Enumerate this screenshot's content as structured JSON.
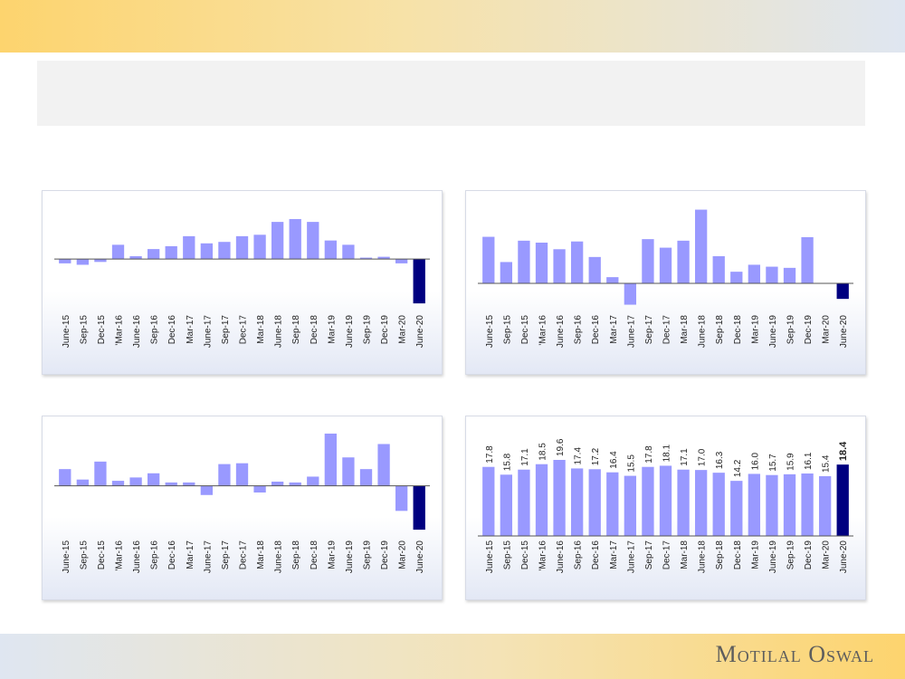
{
  "brand": {
    "name": "Motilal Oswal"
  },
  "colors": {
    "bar": "#9999ff",
    "highlight": "#000080",
    "axis": "#555555",
    "text": "#222222"
  },
  "chart_data": [
    {
      "type": "bar",
      "categories": [
        "June-15",
        "Sep-15",
        "Dec-15",
        "'Mar-16",
        "June-16",
        "Sep-16",
        "Dec-16",
        "Mar-17",
        "June-17",
        "Sep-17",
        "Dec-17",
        "Mar-18",
        "June-18",
        "Sep-18",
        "Dec-18",
        "Mar-19",
        "June-19",
        "Sep-19",
        "Dec-19",
        "Mar-20",
        "June-20"
      ],
      "values": [
        -1.5,
        -2.0,
        -1.0,
        5.0,
        1.0,
        3.5,
        4.5,
        8.0,
        5.5,
        6.0,
        8.0,
        8.5,
        13.0,
        14.0,
        13.0,
        6.5,
        5.0,
        0.5,
        0.8,
        -1.5,
        -15.5
      ],
      "highlight_index": 20,
      "ylim": [
        -18,
        20
      ],
      "title": "",
      "xlabel": "",
      "ylabel": ""
    },
    {
      "type": "bar",
      "categories": [
        "June-15",
        "Sep-15",
        "Dec-15",
        "'Mar-16",
        "June-16",
        "Sep-16",
        "Dec-16",
        "Mar-17",
        "June-17",
        "Sep-17",
        "Dec-17",
        "Mar-18",
        "June-18",
        "Sep-18",
        "Dec-18",
        "Mar-19",
        "June-19",
        "Sep-19",
        "Dec-19",
        "Mar-20",
        "June-20"
      ],
      "values": [
        12.0,
        5.5,
        11.0,
        10.5,
        8.8,
        10.8,
        6.8,
        1.6,
        -5.5,
        11.4,
        9.2,
        11.0,
        19.0,
        7.0,
        3.0,
        4.8,
        4.3,
        4.0,
        11.9,
        0.1,
        -4.0
      ],
      "highlight_index": 20,
      "ylim": [
        -7,
        21
      ],
      "title": "",
      "xlabel": "",
      "ylabel": ""
    },
    {
      "type": "bar",
      "categories": [
        "June-15",
        "Sep-15",
        "Dec-15",
        "'Mar-16",
        "June-16",
        "Sep-16",
        "Dec-16",
        "Mar-17",
        "June-17",
        "Sep-17",
        "Dec-17",
        "Mar-18",
        "June-18",
        "Sep-18",
        "Dec-18",
        "Mar-19",
        "June-19",
        "Sep-19",
        "Dec-19",
        "Mar-20",
        "June-20"
      ],
      "values": [
        4.0,
        1.5,
        5.8,
        1.2,
        2.0,
        3.0,
        0.8,
        0.8,
        -2.2,
        5.2,
        5.4,
        -1.6,
        1.0,
        0.8,
        2.2,
        12.5,
        6.8,
        4.0,
        10.0,
        -6.0,
        -10.5
      ],
      "highlight_index": 20,
      "ylim": [
        -12,
        14
      ],
      "title": "",
      "xlabel": "",
      "ylabel": ""
    },
    {
      "type": "bar",
      "categories": [
        "June-15",
        "Sep-15",
        "Dec-15",
        "'Mar-16",
        "June-16",
        "Sep-16",
        "Dec-16",
        "Mar-17",
        "June-17",
        "Sep-17",
        "Dec-17",
        "Mar-18",
        "June-18",
        "Sep-18",
        "Dec-18",
        "Mar-19",
        "June-19",
        "Sep-19",
        "Dec-19",
        "Mar-20",
        "June-20"
      ],
      "values": [
        17.8,
        15.8,
        17.1,
        18.5,
        19.6,
        17.4,
        17.2,
        16.4,
        15.5,
        17.8,
        18.1,
        17.1,
        17.0,
        16.3,
        14.2,
        16.0,
        15.7,
        15.9,
        16.1,
        15.4,
        18.4
      ],
      "data_labels": [
        "17.8",
        "15.8",
        "17.1",
        "18.5",
        "19.6",
        "17.4",
        "17.2",
        "16.4",
        "15.5",
        "17.8",
        "18.1",
        "17.1",
        "17.0",
        "16.3",
        "14.2",
        "16.0",
        "15.7",
        "15.9",
        "16.1",
        "15.4",
        "18.4"
      ],
      "highlight_index": 20,
      "ylim": [
        0,
        28
      ],
      "title": "",
      "xlabel": "",
      "ylabel": ""
    }
  ]
}
